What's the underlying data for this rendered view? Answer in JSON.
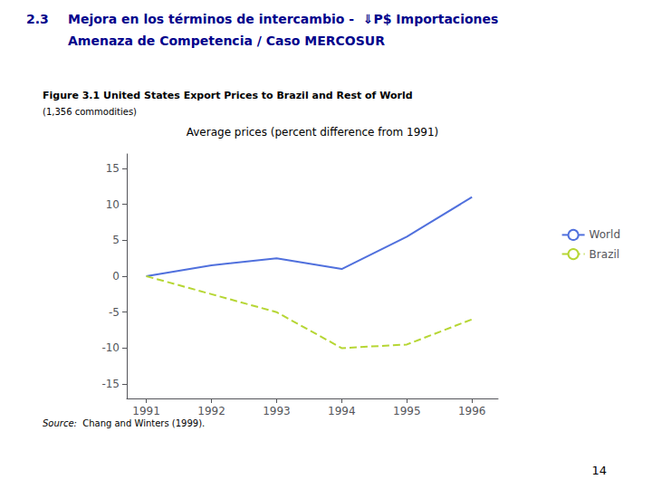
{
  "chart_data": {
    "type": "line",
    "title": "Figure 3.1 United States Export Prices to Brazil and Rest of World",
    "subtitle": "(1,356 commodities)",
    "ylabel": "Average prices (percent difference from 1991)",
    "annotations": [
      "2.3",
      "Mejora en los términos de intercambio -  ⇓P$ Importaciones",
      "Amenaza de Competencia / Caso MERCOSUR",
      "Source:",
      " Chang and Winters (1999).",
      "14"
    ],
    "x": [
      1991,
      1992,
      1993,
      1994,
      1995,
      1996
    ],
    "series": [
      {
        "name": "World",
        "line_style": "solid",
        "values": [
          0,
          1.5,
          2.5,
          1.0,
          5.5,
          11.0
        ]
      },
      {
        "name": "Brazil",
        "line_style": "dashed",
        "values": [
          0,
          -2.5,
          -5.0,
          -10.0,
          -9.5,
          -6.0
        ]
      }
    ],
    "xlim": [
      1990.7,
      1996.4
    ],
    "xticks": [
      1991,
      1992,
      1993,
      1994,
      1995,
      1996
    ],
    "ylim": [
      -17,
      17
    ],
    "yticks": [
      -15,
      -10,
      -5,
      0,
      5,
      10,
      15
    ],
    "grid": false,
    "legend": "right"
  }
}
